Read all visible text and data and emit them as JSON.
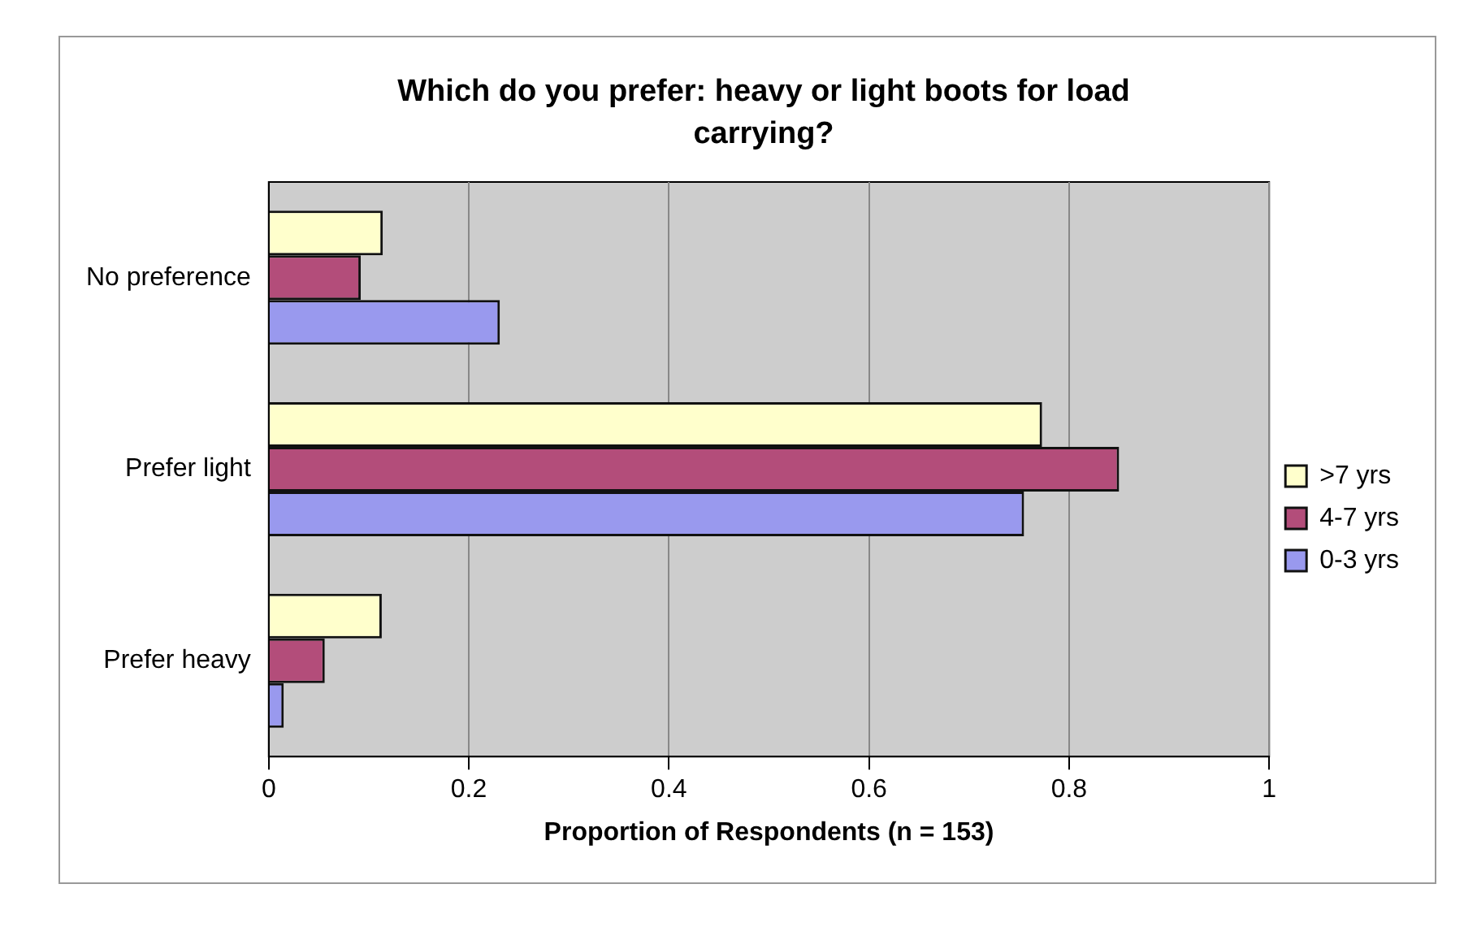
{
  "chart_data": {
    "type": "bar",
    "orientation": "horizontal",
    "title": "Which do you prefer: heavy or light boots for load carrying?",
    "xlabel": "Proportion of Respondents (n = 153)",
    "categories": [
      "No preference",
      "Prefer light",
      "Prefer heavy"
    ],
    "series": [
      {
        "name": ">7 yrs",
        "color": "#ffffcc",
        "values": [
          0.114,
          0.773,
          0.113
        ]
      },
      {
        "name": "4-7 yrs",
        "color": "#b34d7a",
        "values": [
          0.092,
          0.85,
          0.056
        ]
      },
      {
        "name": "0-3 yrs",
        "color": "#9999ee",
        "values": [
          0.231,
          0.755,
          0.015
        ]
      }
    ],
    "xlim": [
      0,
      1
    ],
    "xticks": [
      0,
      0.2,
      0.4,
      0.6,
      0.8,
      1
    ],
    "grid": "x",
    "legend": "right"
  }
}
